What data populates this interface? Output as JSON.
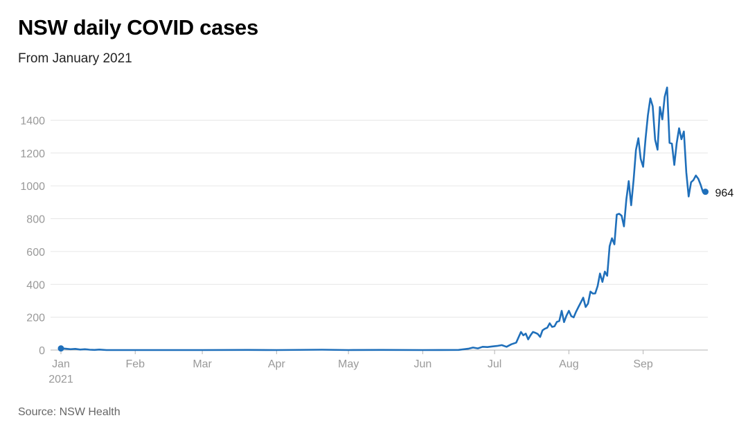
{
  "colors": {
    "line": "#1f6fba",
    "grid": "#e6e6e6",
    "axis": "#b3b3b3"
  },
  "chart_data": {
    "type": "line",
    "title": "NSW daily COVID cases",
    "subtitle": "From January 2021",
    "source": "Source: NSW Health",
    "xlabel": "",
    "ylabel": "",
    "grid": true,
    "ylim": [
      0,
      1600
    ],
    "yticks": [
      0,
      200,
      400,
      600,
      800,
      1000,
      1200,
      1400
    ],
    "xlim": [
      "2021-01-01",
      "2021-09-28"
    ],
    "xticks": [
      {
        "date": "2021-01-01",
        "label": "Jan",
        "sublabel": "2021"
      },
      {
        "date": "2021-02-01",
        "label": "Feb"
      },
      {
        "date": "2021-03-01",
        "label": "Mar"
      },
      {
        "date": "2021-04-01",
        "label": "Apr"
      },
      {
        "date": "2021-05-01",
        "label": "May"
      },
      {
        "date": "2021-06-01",
        "label": "Jun"
      },
      {
        "date": "2021-07-01",
        "label": "Jul"
      },
      {
        "date": "2021-08-01",
        "label": "Aug"
      },
      {
        "date": "2021-09-01",
        "label": "Sep"
      }
    ],
    "end_label": "964",
    "series": [
      {
        "points": [
          [
            "2021-01-01",
            10
          ],
          [
            "2021-01-03",
            8
          ],
          [
            "2021-01-05",
            5
          ],
          [
            "2021-01-07",
            7
          ],
          [
            "2021-01-09",
            3
          ],
          [
            "2021-01-11",
            5
          ],
          [
            "2021-01-13",
            2
          ],
          [
            "2021-01-15",
            1
          ],
          [
            "2021-01-17",
            3
          ],
          [
            "2021-01-20",
            0
          ],
          [
            "2021-02-01",
            0
          ],
          [
            "2021-02-15",
            0
          ],
          [
            "2021-03-01",
            0
          ],
          [
            "2021-03-20",
            1
          ],
          [
            "2021-04-01",
            0
          ],
          [
            "2021-04-20",
            2
          ],
          [
            "2021-05-01",
            0
          ],
          [
            "2021-05-15",
            1
          ],
          [
            "2021-06-01",
            0
          ],
          [
            "2021-06-16",
            1
          ],
          [
            "2021-06-20",
            8
          ],
          [
            "2021-06-22",
            15
          ],
          [
            "2021-06-24",
            10
          ],
          [
            "2021-06-26",
            20
          ],
          [
            "2021-06-28",
            18
          ],
          [
            "2021-06-30",
            22
          ],
          [
            "2021-07-02",
            25
          ],
          [
            "2021-07-04",
            30
          ],
          [
            "2021-07-06",
            20
          ],
          [
            "2021-07-08",
            35
          ],
          [
            "2021-07-10",
            45
          ],
          [
            "2021-07-12",
            110
          ],
          [
            "2021-07-13",
            90
          ],
          [
            "2021-07-14",
            100
          ],
          [
            "2021-07-15",
            65
          ],
          [
            "2021-07-16",
            90
          ],
          [
            "2021-07-17",
            110
          ],
          [
            "2021-07-18",
            105
          ],
          [
            "2021-07-19",
            98
          ],
          [
            "2021-07-20",
            80
          ],
          [
            "2021-07-21",
            120
          ],
          [
            "2021-07-22",
            130
          ],
          [
            "2021-07-23",
            136
          ],
          [
            "2021-07-24",
            163
          ],
          [
            "2021-07-25",
            141
          ],
          [
            "2021-07-26",
            145
          ],
          [
            "2021-07-27",
            172
          ],
          [
            "2021-07-28",
            177
          ],
          [
            "2021-07-29",
            239
          ],
          [
            "2021-07-30",
            170
          ],
          [
            "2021-07-31",
            210
          ],
          [
            "2021-08-01",
            239
          ],
          [
            "2021-08-02",
            207
          ],
          [
            "2021-08-03",
            199
          ],
          [
            "2021-08-04",
            233
          ],
          [
            "2021-08-05",
            262
          ],
          [
            "2021-08-06",
            291
          ],
          [
            "2021-08-07",
            319
          ],
          [
            "2021-08-08",
            262
          ],
          [
            "2021-08-09",
            283
          ],
          [
            "2021-08-10",
            356
          ],
          [
            "2021-08-11",
            344
          ],
          [
            "2021-08-12",
            345
          ],
          [
            "2021-08-13",
            390
          ],
          [
            "2021-08-14",
            466
          ],
          [
            "2021-08-15",
            415
          ],
          [
            "2021-08-16",
            478
          ],
          [
            "2021-08-17",
            452
          ],
          [
            "2021-08-18",
            633
          ],
          [
            "2021-08-19",
            681
          ],
          [
            "2021-08-20",
            644
          ],
          [
            "2021-08-21",
            825
          ],
          [
            "2021-08-22",
            830
          ],
          [
            "2021-08-23",
            818
          ],
          [
            "2021-08-24",
            753
          ],
          [
            "2021-08-25",
            919
          ],
          [
            "2021-08-26",
            1029
          ],
          [
            "2021-08-27",
            882
          ],
          [
            "2021-08-28",
            1035
          ],
          [
            "2021-08-29",
            1218
          ],
          [
            "2021-08-30",
            1290
          ],
          [
            "2021-08-31",
            1164
          ],
          [
            "2021-09-01",
            1116
          ],
          [
            "2021-09-02",
            1288
          ],
          [
            "2021-09-03",
            1431
          ],
          [
            "2021-09-04",
            1533
          ],
          [
            "2021-09-05",
            1485
          ],
          [
            "2021-09-06",
            1281
          ],
          [
            "2021-09-07",
            1220
          ],
          [
            "2021-09-08",
            1480
          ],
          [
            "2021-09-09",
            1405
          ],
          [
            "2021-09-10",
            1542
          ],
          [
            "2021-09-11",
            1599
          ],
          [
            "2021-09-12",
            1262
          ],
          [
            "2021-09-13",
            1257
          ],
          [
            "2021-09-14",
            1127
          ],
          [
            "2021-09-15",
            1259
          ],
          [
            "2021-09-16",
            1351
          ],
          [
            "2021-09-17",
            1284
          ],
          [
            "2021-09-18",
            1331
          ],
          [
            "2021-09-19",
            1083
          ],
          [
            "2021-09-20",
            935
          ],
          [
            "2021-09-21",
            1022
          ],
          [
            "2021-09-22",
            1035
          ],
          [
            "2021-09-23",
            1063
          ],
          [
            "2021-09-24",
            1043
          ],
          [
            "2021-09-25",
            1007
          ],
          [
            "2021-09-26",
            961
          ],
          [
            "2021-09-27",
            964
          ]
        ]
      }
    ]
  }
}
